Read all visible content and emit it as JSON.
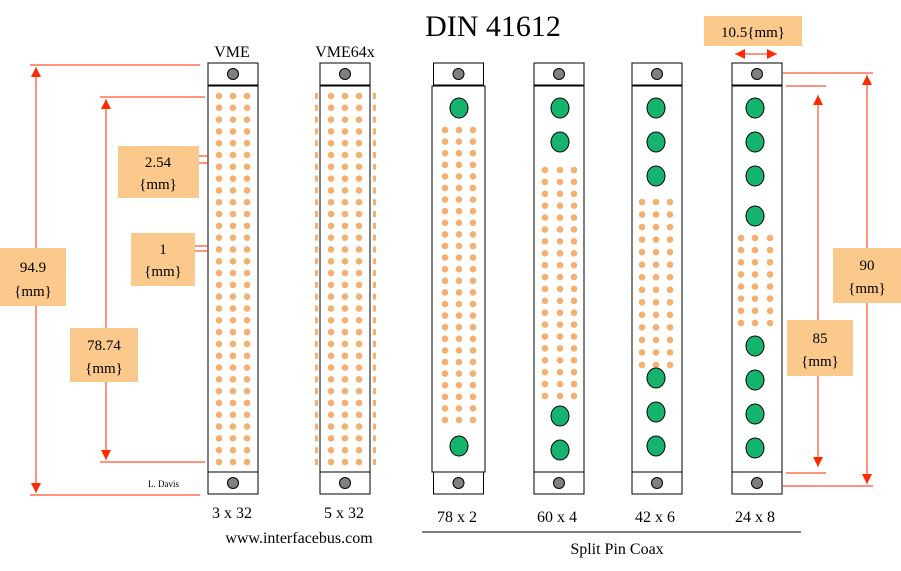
{
  "title": "DIN 41612",
  "credit": "L. Davis",
  "website": "www.interfacebus.com",
  "group_label": "Split Pin Coax",
  "colors": {
    "pin": "#f5b06f",
    "label_box": "#fcc98c",
    "coax": "#14b36e",
    "dimension_line": "#ff2a00",
    "body": "#ffffff",
    "outline": "#000000",
    "screw": "#808080"
  },
  "connectors": [
    {
      "top_label": "VME",
      "bottom_label": "3 x 32"
    },
    {
      "top_label": "VME64x",
      "bottom_label": "5 x 32"
    },
    {
      "top_label": "",
      "bottom_label": "78 x 2"
    },
    {
      "top_label": "",
      "bottom_label": "60 x 4"
    },
    {
      "top_label": "",
      "bottom_label": "42 x 6"
    },
    {
      "top_label": "",
      "bottom_label": "24 x 8"
    }
  ],
  "dimensions": {
    "width": {
      "value": "10.5",
      "unit": "{mm}"
    },
    "pitch": {
      "value": "2.54",
      "unit": "{mm}"
    },
    "pin": {
      "value": "1",
      "unit": "{mm}"
    },
    "overall": {
      "value": "94.9",
      "unit": "{mm}"
    },
    "pin_row": {
      "value": "78.74",
      "unit": "{mm}"
    },
    "right_outer": {
      "value": "90",
      "unit": "{mm}"
    },
    "right_inner": {
      "value": "85",
      "unit": "{mm}"
    }
  }
}
